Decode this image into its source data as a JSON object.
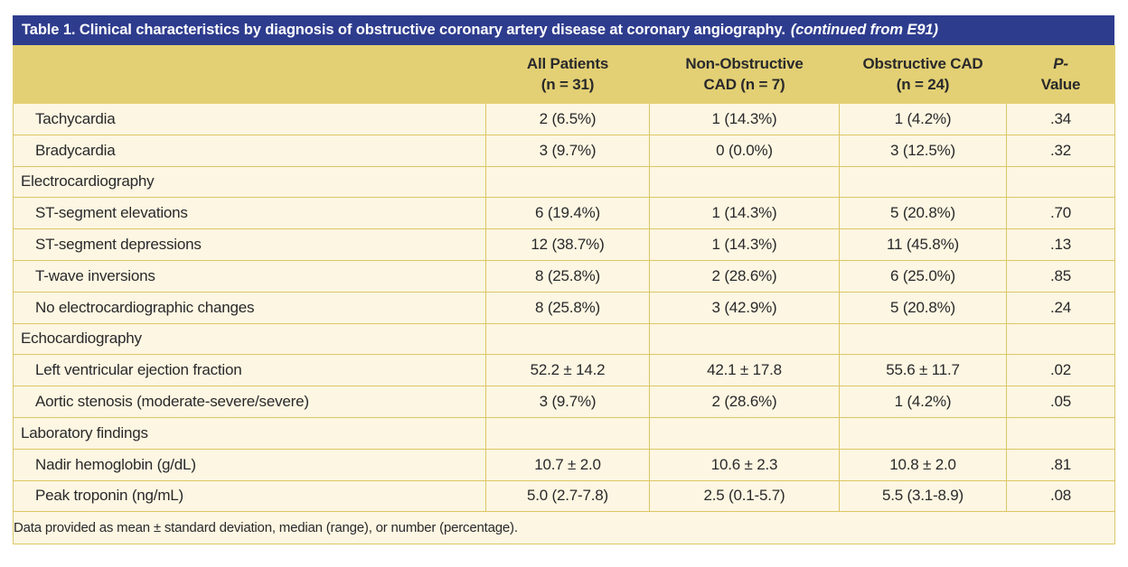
{
  "colors": {
    "title_bar_bg": "#2e3c8e",
    "title_text": "#ffffff",
    "header_bg": "#e3d074",
    "row_bg": "#fdf6e2",
    "border": "#dcc765",
    "text": "#29292b"
  },
  "table": {
    "title": "Table 1. Clinical characteristics by diagnosis of obstructive coronary artery disease at coronary angiography.",
    "title_continuation": "(continued from E91)",
    "columns": [
      {
        "line1": "",
        "line2": ""
      },
      {
        "line1": "All Patients",
        "line2": "(n = 31)"
      },
      {
        "line1": "Non-Obstructive",
        "line2": "CAD (n = 7)"
      },
      {
        "line1": "Obstructive CAD",
        "line2": "(n = 24)"
      },
      {
        "line1": "P-",
        "line2": "Value",
        "italic_line1": true
      }
    ],
    "rows": [
      {
        "label": "Tachycardia",
        "section": false,
        "values": [
          "2 (6.5%)",
          "1 (14.3%)",
          "1 (4.2%)",
          ".34"
        ]
      },
      {
        "label": "Bradycardia",
        "section": false,
        "values": [
          "3 (9.7%)",
          "0 (0.0%)",
          "3 (12.5%)",
          ".32"
        ]
      },
      {
        "label": "Electrocardiography",
        "section": true,
        "values": [
          "",
          "",
          "",
          ""
        ]
      },
      {
        "label": "ST-segment elevations",
        "section": false,
        "values": [
          "6 (19.4%)",
          "1 (14.3%)",
          "5 (20.8%)",
          ".70"
        ]
      },
      {
        "label": "ST-segment depressions",
        "section": false,
        "values": [
          "12 (38.7%)",
          "1 (14.3%)",
          "11 (45.8%)",
          ".13"
        ]
      },
      {
        "label": "T-wave inversions",
        "section": false,
        "values": [
          "8 (25.8%)",
          "2 (28.6%)",
          "6 (25.0%)",
          ".85"
        ]
      },
      {
        "label": "No electrocardiographic changes",
        "section": false,
        "values": [
          "8 (25.8%)",
          "3 (42.9%)",
          "5 (20.8%)",
          ".24"
        ]
      },
      {
        "label": "Echocardiography",
        "section": true,
        "values": [
          "",
          "",
          "",
          ""
        ]
      },
      {
        "label": "Left ventricular ejection fraction",
        "section": false,
        "values": [
          "52.2 ± 14.2",
          "42.1 ± 17.8",
          "55.6 ± 11.7",
          ".02"
        ]
      },
      {
        "label": "Aortic stenosis (moderate-severe/severe)",
        "section": false,
        "values": [
          "3 (9.7%)",
          "2 (28.6%)",
          "1 (4.2%)",
          ".05"
        ]
      },
      {
        "label": "Laboratory findings",
        "section": true,
        "values": [
          "",
          "",
          "",
          ""
        ]
      },
      {
        "label": "Nadir hemoglobin (g/dL)",
        "section": false,
        "values": [
          "10.7 ± 2.0",
          "10.6 ± 2.3",
          "10.8 ± 2.0",
          ".81"
        ]
      },
      {
        "label": "Peak troponin (ng/mL)",
        "section": false,
        "values": [
          "5.0 (2.7-7.8)",
          "2.5 (0.1-5.7)",
          "5.5 (3.1-8.9)",
          ".08"
        ]
      }
    ],
    "footnote": "Data provided as mean ± standard deviation, median (range), or number (percentage)."
  }
}
